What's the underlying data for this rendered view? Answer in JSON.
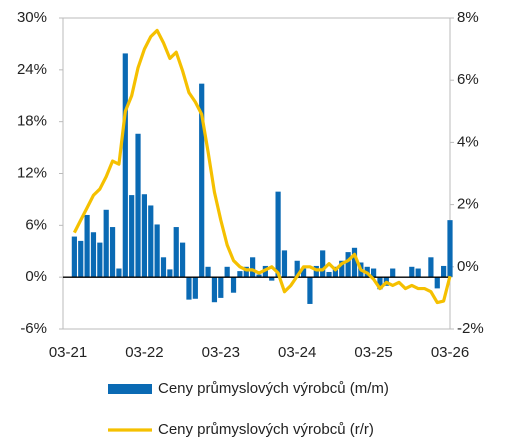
{
  "chart_data": {
    "type": "bar_line",
    "categories": [
      "03-21",
      null,
      null,
      null,
      null,
      null,
      null,
      null,
      null,
      null,
      null,
      null,
      "03-22",
      null,
      null,
      null,
      null,
      null,
      null,
      null,
      null,
      null,
      null,
      null,
      "03-23",
      null,
      null,
      null,
      null,
      null,
      null,
      null,
      null,
      null,
      null,
      null,
      "03-24",
      null,
      null,
      null,
      null,
      null,
      null,
      null,
      null,
      null,
      null,
      null,
      "03-25",
      null,
      null,
      null,
      null,
      null,
      null,
      null,
      null,
      null,
      null,
      null,
      "03-26"
    ],
    "series": [
      {
        "name": "Ceny průmyslových výrobců (m/m)",
        "type": "bar",
        "color": "#0a6ab4",
        "axis": "y",
        "values": [
          null,
          4.7,
          4.2,
          7.2,
          5.2,
          4.0,
          7.8,
          5.8,
          1.0,
          25.9,
          9.5,
          16.6,
          9.6,
          8.3,
          6.1,
          2.3,
          0.9,
          5.8,
          4.0,
          -2.6,
          -2.5,
          22.4,
          1.2,
          -2.9,
          -2.4,
          1.2,
          -1.8,
          0.7,
          1.2,
          2.3,
          0.3,
          1.3,
          -0.4,
          9.9,
          3.1,
          0.1,
          1.9,
          1.0,
          -3.1,
          1.3,
          3.1,
          0.6,
          1.2,
          1.9,
          2.9,
          3.4,
          1.7,
          1.2,
          1.0,
          -1.4,
          -1.0,
          1.0,
          0,
          0,
          1.2,
          1.0,
          0,
          2.3,
          -1.3,
          1.3,
          6.6
        ]
      },
      {
        "name": "Ceny průmyslových výrobců (r/r)",
        "type": "line",
        "color": "#f5c000",
        "axis": "y2",
        "values": [
          null,
          1.1,
          1.5,
          1.9,
          2.3,
          2.5,
          2.9,
          3.4,
          3.3,
          5.0,
          5.5,
          6.4,
          7.0,
          7.4,
          7.6,
          7.2,
          6.7,
          6.9,
          6.3,
          5.6,
          5.3,
          4.9,
          3.7,
          2.4,
          1.5,
          0.7,
          0.2,
          0.0,
          -0.1,
          -0.1,
          -0.2,
          -0.1,
          0.0,
          -0.2,
          -0.8,
          -0.6,
          -0.3,
          0.0,
          0.0,
          -0.1,
          -0.1,
          0.1,
          -0.1,
          0.1,
          0.2,
          0.4,
          -0.1,
          -0.2,
          -0.4,
          -0.7,
          -0.5,
          -0.6,
          -0.5,
          -0.7,
          -0.6,
          -0.7,
          -0.7,
          -0.8,
          -1.15,
          -1.1,
          -0.3
        ]
      }
    ],
    "ylim": [
      -6,
      30
    ],
    "yticks": [
      {
        "value": -6,
        "label": "-6%"
      },
      {
        "value": 0,
        "label": "0%"
      },
      {
        "value": 6,
        "label": "6%"
      },
      {
        "value": 12,
        "label": "12%"
      },
      {
        "value": 18,
        "label": "18%"
      },
      {
        "value": 24,
        "label": "24%"
      },
      {
        "value": 30,
        "label": "30%"
      }
    ],
    "y2lim": [
      -2,
      8
    ],
    "y2ticks": [
      {
        "value": -2,
        "label": "-2%"
      },
      {
        "value": 0,
        "label": "0%"
      },
      {
        "value": 2,
        "label": "2%"
      },
      {
        "value": 4,
        "label": "4%"
      },
      {
        "value": 6,
        "label": "6%"
      },
      {
        "value": 8,
        "label": "8%"
      }
    ],
    "legend": "bottom"
  }
}
